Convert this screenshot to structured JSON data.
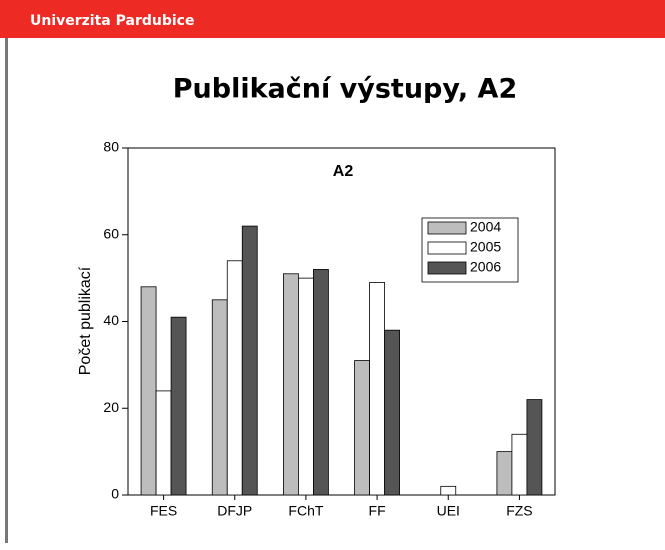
{
  "header": {
    "title": "Univerzita Pardubice"
  },
  "chart_data": {
    "type": "bar",
    "title": "Publikační výstupy, A2",
    "plot_title": "A2",
    "ylabel": "Počet publikací",
    "categories": [
      "FES",
      "DFJP",
      "FChT",
      "FF",
      "UEI",
      "FZS"
    ],
    "series": [
      {
        "name": "2004",
        "color": "#bdbdbd",
        "values": [
          48,
          45,
          51,
          31,
          0,
          10
        ]
      },
      {
        "name": "2005",
        "color": "#ffffff",
        "values": [
          24,
          54,
          50,
          49,
          2,
          14
        ]
      },
      {
        "name": "2006",
        "color": "#555555",
        "values": [
          41,
          62,
          52,
          38,
          0,
          22
        ]
      }
    ],
    "ylim": [
      0,
      80
    ],
    "yticks": [
      0,
      20,
      40,
      60,
      80
    ],
    "legend": "upper right",
    "grid": false
  }
}
